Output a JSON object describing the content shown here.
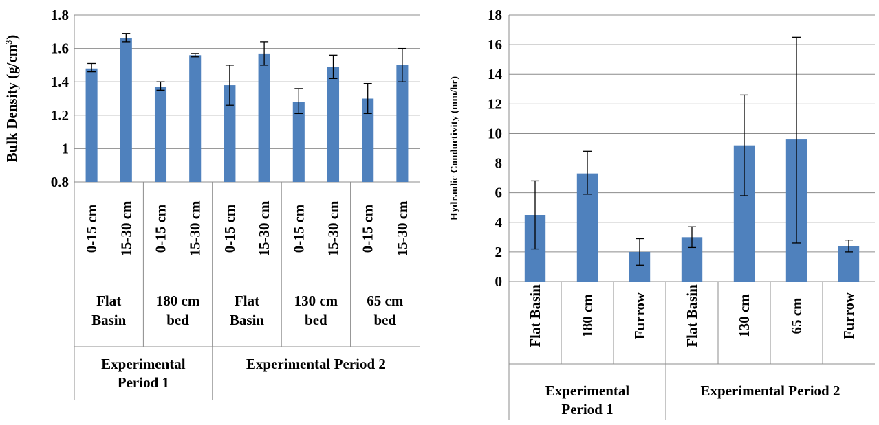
{
  "chart_data": [
    {
      "type": "bar",
      "ylabel": "Bulk Density (g/cm³)",
      "ylim": [
        0.8,
        1.8
      ],
      "yticks": [
        "0.8",
        "1",
        "1.2",
        "1.4",
        "1.6",
        "1.8"
      ],
      "grid": true,
      "categories": [
        "0-15 cm",
        "15-30 cm",
        "0-15 cm",
        "15-30 cm",
        "0-15 cm",
        "15-30 cm",
        "0-15 cm",
        "15-30 cm",
        "0-15 cm",
        "15-30 cm"
      ],
      "values": [
        1.48,
        1.66,
        1.37,
        1.56,
        1.38,
        1.57,
        1.28,
        1.49,
        1.3,
        1.5
      ],
      "errors": [
        [
          1.46,
          1.51
        ],
        [
          1.64,
          1.69
        ],
        [
          1.35,
          1.4
        ],
        [
          1.55,
          1.57
        ],
        [
          1.26,
          1.5
        ],
        [
          1.5,
          1.64
        ],
        [
          1.21,
          1.36
        ],
        [
          1.42,
          1.56
        ],
        [
          1.21,
          1.39
        ],
        [
          1.4,
          1.6
        ]
      ],
      "groups": [
        {
          "label": [
            "Flat",
            "Basin"
          ],
          "span": 2
        },
        {
          "label": [
            "180 cm",
            "bed"
          ],
          "span": 2
        },
        {
          "label": [
            "Flat",
            "Basin"
          ],
          "span": 2
        },
        {
          "label": [
            "130 cm",
            "bed"
          ],
          "span": 2
        },
        {
          "label": [
            "65 cm",
            "bed"
          ],
          "span": 2
        }
      ],
      "periods": [
        {
          "label": [
            "Experimental",
            "Period 1"
          ],
          "span": 4
        },
        {
          "label": [
            "Experimental Period 2"
          ],
          "span": 6
        }
      ],
      "bar_color": "#4F81BD"
    },
    {
      "type": "bar",
      "ylabel": "Hydraulic Conductivity (mm/hr)",
      "ylim": [
        0,
        18
      ],
      "yticks": [
        "0",
        "2",
        "4",
        "6",
        "8",
        "10",
        "12",
        "14",
        "16",
        "18"
      ],
      "grid": true,
      "categories": [
        "Flat Basin",
        "180 cm",
        "Furrow",
        "Flat Basin",
        "130 cm",
        "65 cm",
        "Furrow"
      ],
      "values": [
        4.5,
        7.3,
        2.0,
        3.0,
        9.2,
        9.6,
        2.4
      ],
      "errors": [
        [
          2.2,
          6.8
        ],
        [
          5.9,
          8.8
        ],
        [
          1.1,
          2.9
        ],
        [
          2.3,
          3.7
        ],
        [
          5.8,
          12.6
        ],
        [
          2.6,
          16.5
        ],
        [
          2.0,
          2.8
        ]
      ],
      "periods": [
        {
          "label": [
            "Experimental",
            "Period 1"
          ],
          "span": 3
        },
        {
          "label": [
            "Experimental Period 2"
          ],
          "span": 4
        }
      ],
      "bar_color": "#4F81BD"
    }
  ]
}
